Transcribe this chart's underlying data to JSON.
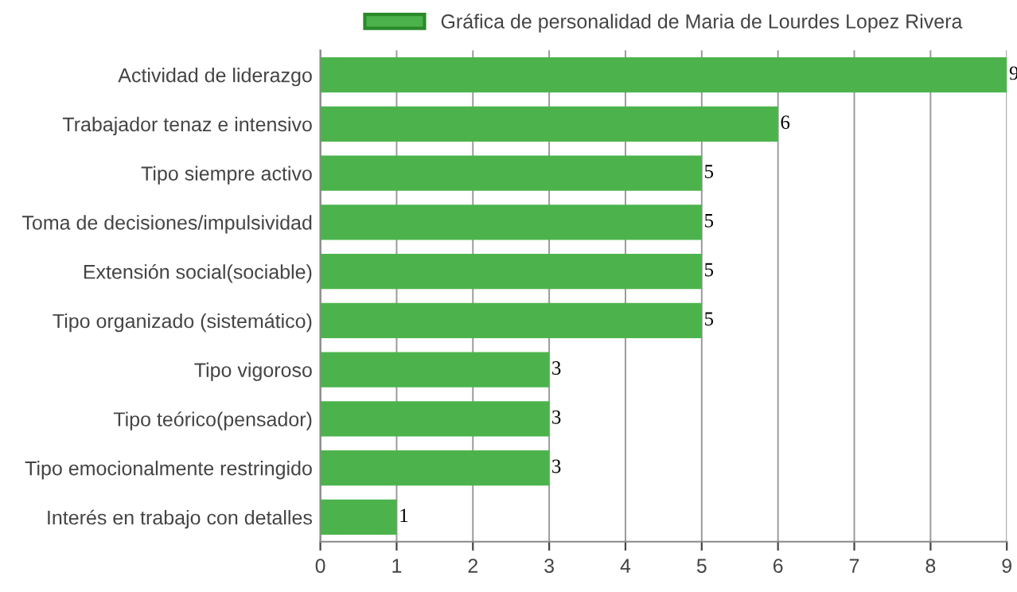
{
  "chart_data": {
    "type": "bar",
    "orientation": "horizontal",
    "categories": [
      "Actividad de liderazgo",
      "Trabajador tenaz e intensivo",
      "Tipo siempre activo",
      "Toma de decisiones/impulsividad",
      "Extensión social(sociable)",
      "Tipo organizado (sistemático)",
      "Tipo vigoroso",
      "Tipo teórico(pensador)",
      "Tipo emocionalmente restringido",
      "Interés en trabajo con detalles"
    ],
    "series": [
      {
        "name": "Gráfica de personalidad de Maria de Lourdes Lopez Rivera",
        "color": "#4cb34c",
        "values": [
          9,
          6,
          5,
          5,
          5,
          5,
          3,
          3,
          3,
          1
        ]
      }
    ],
    "xlim": [
      0,
      9
    ],
    "xticks": [
      0,
      1,
      2,
      3,
      4,
      5,
      6,
      7,
      8,
      9
    ],
    "grid": "x",
    "legend": "top",
    "data_labels": true
  }
}
